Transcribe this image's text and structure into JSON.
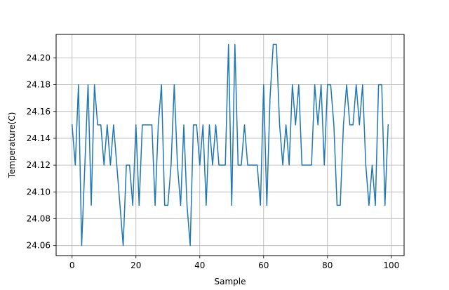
{
  "chart_data": {
    "type": "line",
    "title": "",
    "xlabel": "Sample",
    "ylabel": "Temperature(C)",
    "xlim": [
      -5,
      104
    ],
    "ylim": [
      24.0525,
      24.2175
    ],
    "grid": true,
    "x_ticks": [
      0,
      20,
      40,
      60,
      80,
      100
    ],
    "x_tick_labels": [
      "0",
      "20",
      "40",
      "60",
      "80",
      "100"
    ],
    "y_ticks": [
      24.06,
      24.08,
      24.1,
      24.12,
      24.14,
      24.16,
      24.18,
      24.2
    ],
    "y_tick_labels": [
      "24.06",
      "24.08",
      "24.10",
      "24.12",
      "24.14",
      "24.16",
      "24.18",
      "24.20"
    ],
    "series": [
      {
        "color": "#1f77b4",
        "x": [
          0,
          1,
          2,
          3,
          4,
          5,
          6,
          7,
          8,
          9,
          10,
          11,
          12,
          13,
          14,
          15,
          16,
          17,
          18,
          19,
          20,
          21,
          22,
          23,
          24,
          25,
          26,
          27,
          28,
          29,
          30,
          31,
          32,
          33,
          34,
          35,
          36,
          37,
          38,
          39,
          40,
          41,
          42,
          43,
          44,
          45,
          46,
          47,
          48,
          49,
          50,
          51,
          52,
          53,
          54,
          55,
          56,
          57,
          58,
          59,
          60,
          61,
          62,
          63,
          64,
          65,
          66,
          67,
          68,
          69,
          70,
          71,
          72,
          73,
          74,
          75,
          76,
          77,
          78,
          79,
          80,
          81,
          82,
          83,
          84,
          85,
          86,
          87,
          88,
          89,
          90,
          91,
          92,
          93,
          94,
          95,
          96,
          97,
          98,
          99
        ],
        "values": [
          24.15,
          24.12,
          24.18,
          24.06,
          24.12,
          24.18,
          24.09,
          24.18,
          24.15,
          24.15,
          24.12,
          24.15,
          24.12,
          24.15,
          24.12,
          24.09,
          24.06,
          24.12,
          24.12,
          24.09,
          24.15,
          24.09,
          24.15,
          24.15,
          24.15,
          24.15,
          24.09,
          24.15,
          24.18,
          24.09,
          24.09,
          24.12,
          24.18,
          24.12,
          24.09,
          24.15,
          24.09,
          24.06,
          24.15,
          24.15,
          24.12,
          24.15,
          24.09,
          24.15,
          24.12,
          24.15,
          24.12,
          24.12,
          24.12,
          24.21,
          24.09,
          24.21,
          24.12,
          24.12,
          24.15,
          24.12,
          24.12,
          24.12,
          24.12,
          24.09,
          24.18,
          24.09,
          24.17,
          24.21,
          24.21,
          24.15,
          24.12,
          24.15,
          24.12,
          24.18,
          24.15,
          24.18,
          24.12,
          24.12,
          24.12,
          24.12,
          24.18,
          24.15,
          24.18,
          24.12,
          24.18,
          24.18,
          24.15,
          24.09,
          24.09,
          24.15,
          24.18,
          24.15,
          24.15,
          24.18,
          24.15,
          24.18,
          24.12,
          24.09,
          24.12,
          24.09,
          24.18,
          24.18,
          24.09,
          24.15
        ]
      }
    ]
  }
}
